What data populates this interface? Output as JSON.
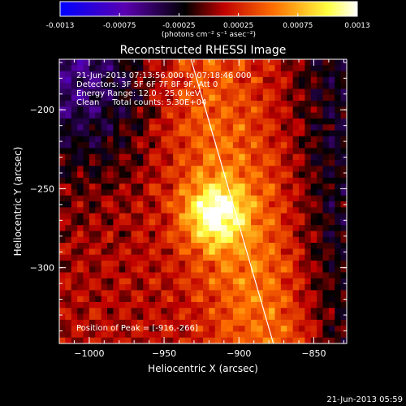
{
  "colorbar": {
    "ticks": [
      "-0.0013",
      "-0.00075",
      "-0.00025",
      "0.00025",
      "0.00075",
      "0.0013"
    ],
    "units_text": "(photons cm⁻² s⁻¹ asec⁻²)",
    "range": [
      -0.0013,
      0.0013
    ],
    "colors": [
      "#0000ff",
      "#5a00b0",
      "#000000",
      "#c00000",
      "#ff7000",
      "#ffff40",
      "#ffffff"
    ]
  },
  "chart_data": {
    "type": "heatmap",
    "title": "Reconstructed RHESSI Image",
    "xlabel": "Heliocentric X (arcsec)",
    "ylabel": "Heliocentric Y (arcsec)",
    "xlim": [
      -1020,
      -828
    ],
    "ylim": [
      -348,
      -168
    ],
    "x_ticks": [
      -1000,
      -950,
      -900,
      -850
    ],
    "y_ticks": [
      -200,
      -250,
      -300
    ],
    "x_tick_labels": [
      "−1000",
      "−950",
      "−900",
      "−850"
    ],
    "y_tick_labels": [
      "−200",
      "−250",
      "−300"
    ],
    "peak_position": [
      -916,
      -266
    ],
    "peak_value": 0.0013,
    "limb_line": [
      [
        -932,
        -168
      ],
      [
        -877,
        -348
      ]
    ],
    "overlay_lines": [
      "21-Jun-2013 07:13:56.000 to 07:18:46.000",
      "Detectors: 3F 5F 6F 7F 8F 9F, Att 0",
      "Energy Range: 12.0 - 25.0 keV",
      "Clean     Total counts: 5.30E+04"
    ],
    "peak_label": "Position of Peak = [-916,-266]"
  },
  "footer_timestamp": "21-Jun-2013 05:59"
}
